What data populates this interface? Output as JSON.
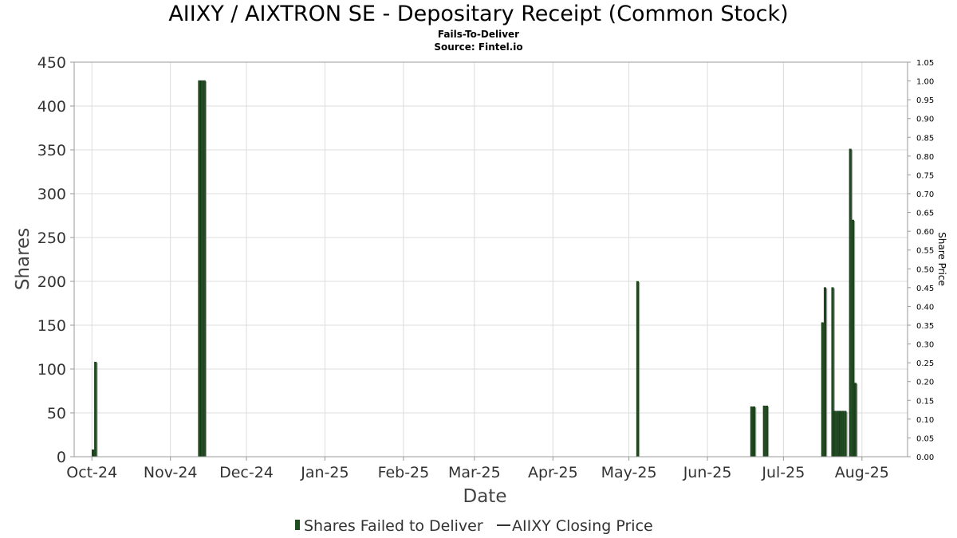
{
  "chart_data": {
    "type": "bar",
    "title": "AIIXY / AIXTRON SE - Depositary Receipt (Common Stock)",
    "subtitle": "Fails-To-Deliver",
    "source": "Source: Fintel.io",
    "xlabel": "Date",
    "ylabel": "Shares",
    "y2label": "Share Price",
    "ylim": [
      0,
      450
    ],
    "y2lim": [
      0,
      1.05
    ],
    "x_range": [
      "2024-09-24",
      "2025-08-19"
    ],
    "yticks": [
      "0",
      "50",
      "100",
      "150",
      "200",
      "250",
      "300",
      "350",
      "400",
      "450"
    ],
    "y2ticks": [
      "0.00",
      "0.05",
      "0.10",
      "0.15",
      "0.20",
      "0.25",
      "0.30",
      "0.35",
      "0.40",
      "0.45",
      "0.50",
      "0.55",
      "0.60",
      "0.65",
      "0.70",
      "0.75",
      "0.80",
      "0.85",
      "0.90",
      "0.95",
      "1.00",
      "1.05"
    ],
    "xticks": [
      {
        "label": "Oct-24",
        "date": "2024-10-01"
      },
      {
        "label": "Nov-24",
        "date": "2024-11-01"
      },
      {
        "label": "Dec-24",
        "date": "2024-12-01"
      },
      {
        "label": "Jan-25",
        "date": "2025-01-01"
      },
      {
        "label": "Feb-25",
        "date": "2025-02-01"
      },
      {
        "label": "Mar-25",
        "date": "2025-03-01"
      },
      {
        "label": "Apr-25",
        "date": "2025-04-01"
      },
      {
        "label": "May-25",
        "date": "2025-05-01"
      },
      {
        "label": "Jun-25",
        "date": "2025-06-01"
      },
      {
        "label": "Jul-25",
        "date": "2025-07-01"
      },
      {
        "label": "Aug-25",
        "date": "2025-08-01"
      }
    ],
    "grid": true,
    "legend_position": "bottom",
    "series": [
      {
        "name": "Shares Failed to Deliver",
        "color": "#1f4d1f",
        "points": [
          {
            "date": "2024-10-01",
            "value": 8
          },
          {
            "date": "2024-10-02",
            "value": 108
          },
          {
            "date": "2024-11-12",
            "value": 429
          },
          {
            "date": "2024-11-13",
            "value": 429
          },
          {
            "date": "2024-11-14",
            "value": 429
          },
          {
            "date": "2025-05-04",
            "value": 200
          },
          {
            "date": "2025-06-18",
            "value": 57
          },
          {
            "date": "2025-06-19",
            "value": 57
          },
          {
            "date": "2025-06-23",
            "value": 58
          },
          {
            "date": "2025-06-24",
            "value": 58
          },
          {
            "date": "2025-07-16",
            "value": 153
          },
          {
            "date": "2025-07-17",
            "value": 193
          },
          {
            "date": "2025-07-20",
            "value": 193
          },
          {
            "date": "2025-07-21",
            "value": 52
          },
          {
            "date": "2025-07-22",
            "value": 52
          },
          {
            "date": "2025-07-23",
            "value": 52
          },
          {
            "date": "2025-07-24",
            "value": 52
          },
          {
            "date": "2025-07-25",
            "value": 52
          },
          {
            "date": "2025-07-27",
            "value": 351
          },
          {
            "date": "2025-07-28",
            "value": 270
          },
          {
            "date": "2025-07-29",
            "value": 84
          }
        ]
      },
      {
        "name": "AIIXY Closing Price",
        "color": "#000000",
        "points": []
      }
    ]
  },
  "legend": {
    "bar_label": "Shares Failed to Deliver",
    "line_label": "AIIXY Closing Price"
  }
}
